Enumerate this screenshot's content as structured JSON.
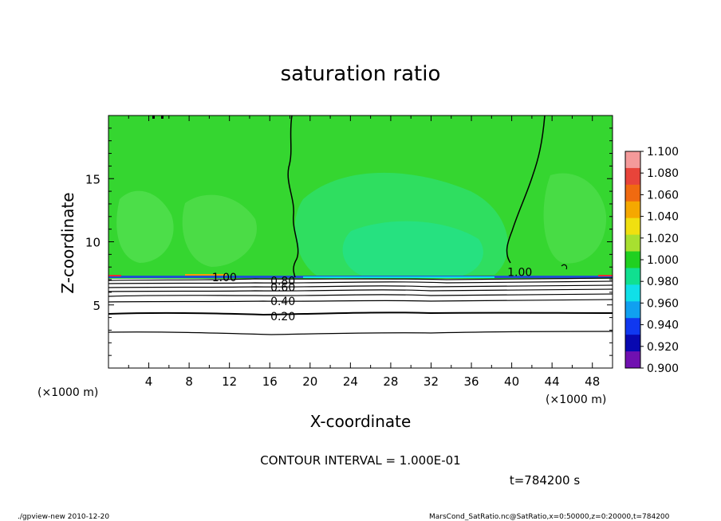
{
  "chart_data": {
    "type": "heatmap",
    "title": "saturation ratio",
    "xlabel": "X-coordinate",
    "ylabel": "Z-coordinate",
    "x_unit": "(×1000 m)",
    "y_unit": "(×1000 m)",
    "xlim": [
      0,
      50
    ],
    "ylim": [
      0,
      20
    ],
    "x_ticks": [
      4,
      8,
      12,
      16,
      20,
      24,
      28,
      32,
      36,
      40,
      44,
      48
    ],
    "y_ticks": [
      5,
      10,
      15
    ],
    "colorbar": {
      "labels": [
        "1.100",
        "1.080",
        "1.060",
        "1.040",
        "1.020",
        "1.000",
        "0.980",
        "0.960",
        "0.940",
        "0.920",
        "0.900"
      ],
      "colors": [
        "#f49a9a",
        "#e8443a",
        "#f06a10",
        "#f5a800",
        "#f0e010",
        "#a8e030",
        "#20d020",
        "#10e090",
        "#10e0e8",
        "#10a0f0",
        "#1038f0",
        "#0808b0",
        "#7010b0"
      ]
    },
    "contour_labels": [
      {
        "label": "1.00",
        "x": 11.5,
        "z": 7.2
      },
      {
        "label": "0.80",
        "x": 17.3,
        "z": 6.9
      },
      {
        "label": "0.60",
        "x": 17.3,
        "z": 6.4
      },
      {
        "label": "0.40",
        "x": 17.3,
        "z": 5.3
      },
      {
        "label": "0.20",
        "x": 17.3,
        "z": 4.1
      },
      {
        "label": "1.00",
        "x": 40.8,
        "z": 7.6
      }
    ],
    "saturated_field_value_approx": 1.0,
    "dry_layer_top_z": 7.0
  },
  "footer": {
    "contour_interval": "CONTOUR INTERVAL = 1.000E-01",
    "time": "t=784200 s",
    "program": "./gpview-new  2010-12-20",
    "source": "MarsCond_SatRatio.nc@SatRatio,x=0:50000,z=0:20000,t=784200"
  }
}
